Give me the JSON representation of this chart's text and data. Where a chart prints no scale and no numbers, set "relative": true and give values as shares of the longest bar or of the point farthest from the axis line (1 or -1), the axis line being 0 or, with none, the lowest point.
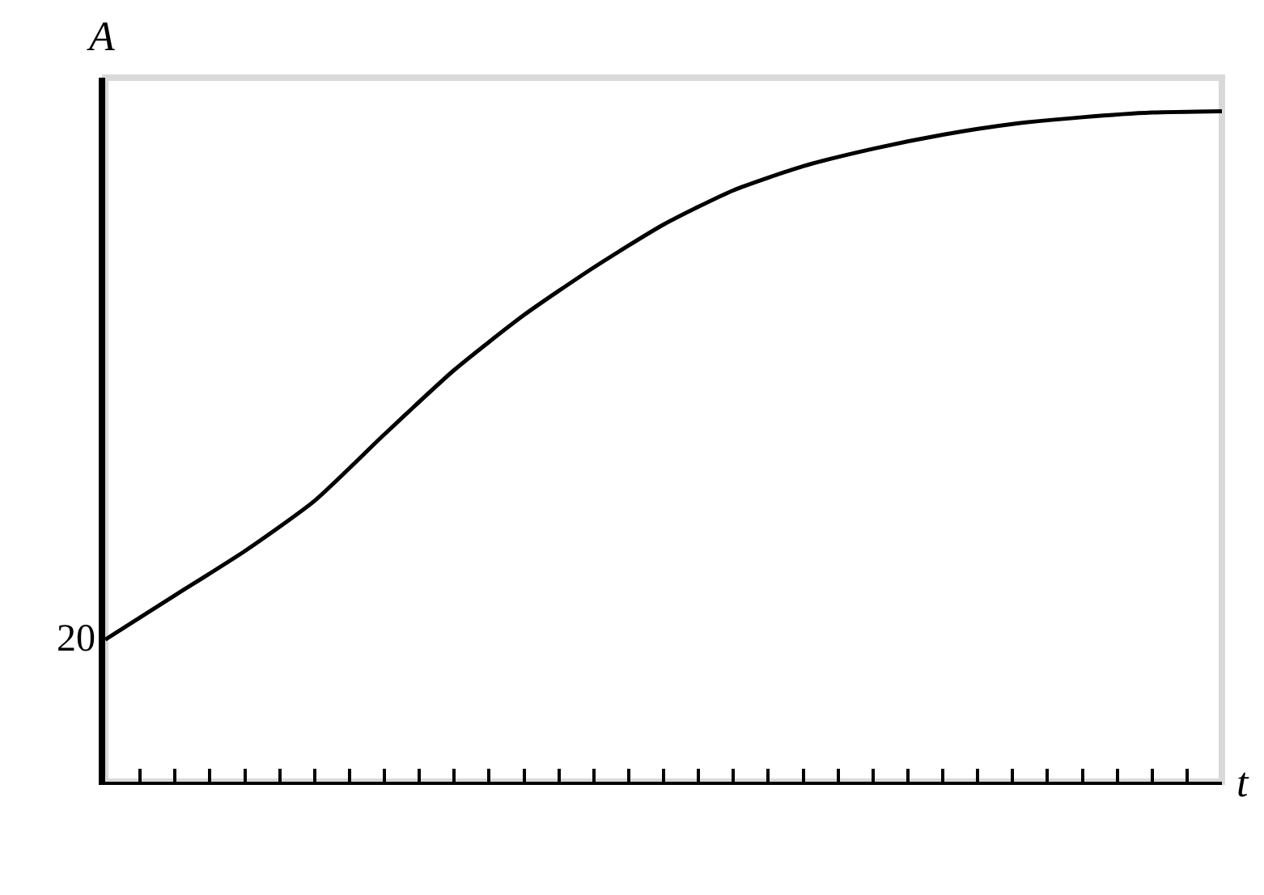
{
  "chart_data": {
    "type": "line",
    "relative": true,
    "xlabel": "t",
    "ylabel": "A",
    "categories": [
      null,
      null,
      null,
      null,
      null,
      null,
      null,
      null,
      null,
      null,
      null,
      null,
      null,
      null,
      null,
      null,
      null
    ],
    "series": [
      {
        "color": "#000000",
        "values": [
          0.212,
          0.278,
          0.344,
          0.419,
          0.518,
          0.614,
          0.696,
          0.767,
          0.831,
          0.882,
          0.918,
          0.944,
          0.965,
          0.981,
          0.991,
          0.998,
          1.0
        ]
      }
    ],
    "annotations": [
      "20"
    ],
    "grid": false,
    "legend": false,
    "marker": "none",
    "line_style": "solid"
  }
}
